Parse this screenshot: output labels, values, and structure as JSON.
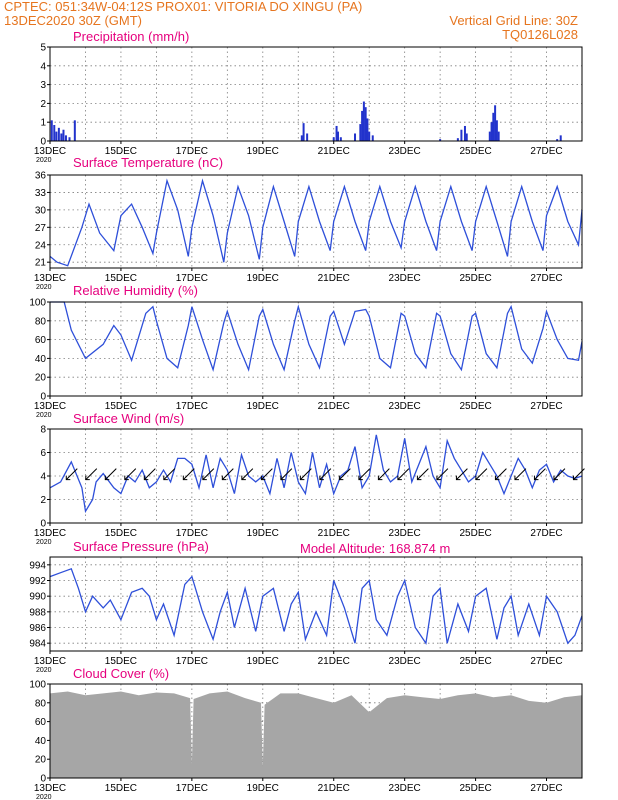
{
  "header": {
    "line1": "CPTEC:  051:34W-04:12S  PROX01: VITORIA DO XINGU (PA)",
    "date": "13DEC2020 30Z (GMT)",
    "grid_note": "Vertical Grid Line: 30Z",
    "code": "TQ0126L028"
  },
  "colors": {
    "header": "#e6751f",
    "title": "#e6007e",
    "line": "#2e4fd9",
    "bar": "#2233cc",
    "cloud": "#a6a6a6"
  },
  "x_labels": [
    "13DEC",
    "15DEC",
    "17DEC",
    "19DEC",
    "21DEC",
    "23DEC",
    "25DEC",
    "27DEC"
  ],
  "year_label": "2020",
  "model_altitude": "Model Altitude: 168.874 m",
  "chart_data": [
    {
      "type": "bar",
      "title": "Precipitation (mm/h)",
      "ylim": [
        0,
        5
      ],
      "yticks": [
        "0",
        "1",
        "2",
        "3",
        "4",
        "5"
      ],
      "x_range_days": [
        0,
        15
      ],
      "bars": [
        [
          0.05,
          1.1
        ],
        [
          0.12,
          0.85
        ],
        [
          0.18,
          0.5
        ],
        [
          0.25,
          0.7
        ],
        [
          0.32,
          0.4
        ],
        [
          0.38,
          0.6
        ],
        [
          0.45,
          0.3
        ],
        [
          0.55,
          0.2
        ],
        [
          0.7,
          1.1
        ],
        [
          7.1,
          0.3
        ],
        [
          7.15,
          0.95
        ],
        [
          7.25,
          0.4
        ],
        [
          8.0,
          0.2
        ],
        [
          8.08,
          0.8
        ],
        [
          8.12,
          0.5
        ],
        [
          8.2,
          0.2
        ],
        [
          8.6,
          0.4
        ],
        [
          8.75,
          0.9
        ],
        [
          8.8,
          1.6
        ],
        [
          8.85,
          2.1
        ],
        [
          8.9,
          1.8
        ],
        [
          8.95,
          1.2
        ],
        [
          9.0,
          0.5
        ],
        [
          9.1,
          0.3
        ],
        [
          11.0,
          0.1
        ],
        [
          11.5,
          0.15
        ],
        [
          11.6,
          0.6
        ],
        [
          11.7,
          0.8
        ],
        [
          11.75,
          0.4
        ],
        [
          12.4,
          0.5
        ],
        [
          12.45,
          1.0
        ],
        [
          12.5,
          1.5
        ],
        [
          12.55,
          1.9
        ],
        [
          12.6,
          1.1
        ],
        [
          12.65,
          0.5
        ],
        [
          14.3,
          0.1
        ],
        [
          14.4,
          0.3
        ]
      ]
    },
    {
      "type": "line",
      "title": "Surface Temperature (nC)",
      "ylim": [
        20,
        36
      ],
      "yticks": [
        21,
        24,
        27,
        30,
        33,
        36
      ],
      "x": [
        0,
        0.2,
        0.5,
        0.9,
        1.1,
        1.4,
        1.8,
        2.0,
        2.3,
        2.6,
        2.9,
        3.0,
        3.3,
        3.6,
        3.9,
        4.0,
        4.3,
        4.6,
        4.9,
        5.0,
        5.3,
        5.6,
        5.9,
        6.0,
        6.3,
        6.6,
        6.9,
        7.0,
        7.3,
        7.6,
        7.9,
        8.0,
        8.3,
        8.6,
        8.9,
        9.0,
        9.3,
        9.6,
        9.9,
        10.0,
        10.3,
        10.6,
        10.9,
        11.0,
        11.3,
        11.6,
        11.9,
        12.0,
        12.3,
        12.6,
        12.9,
        13.0,
        13.3,
        13.6,
        13.9,
        14.0,
        14.3,
        14.6,
        14.9,
        15.0
      ],
      "values": [
        22,
        21,
        20.4,
        27,
        31,
        26,
        23,
        29,
        31,
        27,
        22.5,
        26,
        35,
        30,
        22,
        27,
        35,
        29,
        21,
        26,
        34,
        29,
        21.5,
        27,
        34,
        28,
        22,
        28,
        34,
        28,
        23,
        28,
        34,
        28,
        23,
        28,
        34,
        28,
        23.5,
        28,
        34,
        28,
        23,
        28,
        34,
        28,
        23,
        28,
        34,
        28,
        22,
        28,
        34,
        28,
        23,
        29,
        34,
        28,
        24,
        30
      ]
    },
    {
      "type": "line",
      "title": "Relative Humidity (%)",
      "ylim": [
        0,
        100
      ],
      "yticks": [
        0,
        20,
        40,
        60,
        80,
        100
      ],
      "x": [
        0,
        0.4,
        0.6,
        1.0,
        1.5,
        1.8,
        2.0,
        2.3,
        2.7,
        2.9,
        3.0,
        3.3,
        3.6,
        3.9,
        4.0,
        4.3,
        4.6,
        4.9,
        5.0,
        5.3,
        5.6,
        5.9,
        6.0,
        6.3,
        6.6,
        6.9,
        7.0,
        7.3,
        7.6,
        7.9,
        8.0,
        8.3,
        8.6,
        8.9,
        9.0,
        9.3,
        9.6,
        9.9,
        10.0,
        10.3,
        10.6,
        10.9,
        11.0,
        11.3,
        11.6,
        11.9,
        12.0,
        12.3,
        12.6,
        12.9,
        13.0,
        13.3,
        13.6,
        13.9,
        14.0,
        14.3,
        14.6,
        14.9,
        15.0
      ],
      "values": [
        100,
        100,
        70,
        40,
        55,
        75,
        65,
        38,
        88,
        95,
        80,
        40,
        30,
        75,
        95,
        60,
        28,
        78,
        90,
        55,
        28,
        85,
        92,
        55,
        28,
        80,
        95,
        55,
        30,
        85,
        90,
        55,
        90,
        92,
        85,
        40,
        30,
        88,
        85,
        45,
        30,
        88,
        85,
        45,
        28,
        85,
        88,
        45,
        30,
        88,
        95,
        50,
        35,
        72,
        90,
        60,
        40,
        38,
        58
      ]
    },
    {
      "type": "line",
      "title": "Surface Wind (m/s)",
      "ylim": [
        0,
        8
      ],
      "yticks": [
        0,
        2,
        4,
        6,
        8
      ],
      "x": [
        0,
        0.3,
        0.6,
        0.9,
        1.0,
        1.2,
        1.3,
        1.5,
        1.8,
        2.0,
        2.2,
        2.4,
        2.6,
        2.8,
        3.0,
        3.2,
        3.4,
        3.6,
        3.8,
        4.0,
        4.2,
        4.4,
        4.6,
        4.8,
        5.0,
        5.2,
        5.4,
        5.6,
        5.8,
        6.0,
        6.2,
        6.4,
        6.6,
        6.8,
        7.0,
        7.2,
        7.4,
        7.6,
        7.8,
        8.0,
        8.2,
        8.4,
        8.6,
        8.8,
        9.0,
        9.2,
        9.4,
        9.6,
        9.8,
        10.0,
        10.2,
        10.4,
        10.6,
        10.8,
        11.0,
        11.2,
        11.4,
        11.6,
        11.8,
        12.0,
        12.2,
        12.4,
        12.6,
        12.8,
        13.0,
        13.2,
        13.4,
        13.6,
        13.8,
        14.0,
        14.2,
        14.4,
        14.6,
        14.8,
        15.0
      ],
      "values": [
        3.0,
        3.5,
        5.2,
        3.0,
        1.0,
        2.0,
        3.5,
        4.2,
        3.0,
        2.5,
        4.0,
        3.5,
        4.5,
        3.0,
        3.5,
        4.5,
        3.5,
        5.5,
        5.5,
        5.0,
        3.0,
        5.8,
        3.0,
        5.5,
        4.5,
        2.5,
        5.8,
        4.0,
        3.5,
        4.0,
        2.5,
        5.5,
        3.0,
        6.0,
        3.5,
        2.5,
        6.0,
        3.0,
        5.0,
        2.5,
        4.0,
        4.5,
        6.5,
        3.0,
        4.0,
        7.5,
        4.5,
        3.5,
        4.0,
        7.2,
        3.5,
        5.0,
        6.5,
        4.0,
        3.0,
        7.0,
        5.5,
        4.5,
        3.5,
        4.0,
        6.0,
        5.0,
        4.0,
        2.5,
        4.0,
        5.5,
        4.5,
        3.0,
        4.5,
        5.0,
        3.5,
        4.5,
        4.0,
        3.8,
        4.0
      ]
    },
    {
      "type": "line",
      "title": "Surface Pressure (hPa)",
      "ylim": [
        983,
        995
      ],
      "yticks": [
        984,
        986,
        988,
        990,
        992,
        994
      ],
      "x": [
        0,
        0.3,
        0.6,
        0.8,
        1.0,
        1.2,
        1.5,
        1.7,
        2.0,
        2.3,
        2.6,
        2.8,
        3.0,
        3.2,
        3.5,
        3.8,
        4.0,
        4.3,
        4.6,
        4.8,
        5.0,
        5.2,
        5.5,
        5.8,
        6.0,
        6.3,
        6.6,
        6.8,
        7.0,
        7.2,
        7.5,
        7.8,
        8.0,
        8.3,
        8.6,
        8.8,
        9.0,
        9.2,
        9.5,
        9.8,
        10.0,
        10.3,
        10.6,
        10.8,
        11.0,
        11.2,
        11.5,
        11.8,
        12.0,
        12.3,
        12.6,
        12.8,
        13.0,
        13.2,
        13.5,
        13.8,
        14.0,
        14.3,
        14.6,
        14.8,
        15.0
      ],
      "values": [
        992.5,
        993,
        993.5,
        991,
        988,
        990,
        988.5,
        989.5,
        987,
        990.5,
        991,
        990,
        987,
        989,
        985,
        991.5,
        992.5,
        988,
        984.5,
        988,
        990.5,
        986,
        991,
        985.5,
        990,
        991,
        985.5,
        989,
        990.5,
        984.5,
        988,
        985,
        992,
        988.5,
        984,
        991,
        992,
        987,
        985,
        990,
        992,
        986,
        984,
        990,
        991,
        984,
        989,
        985.5,
        990,
        991,
        984.5,
        988.5,
        990,
        985,
        989,
        985,
        990,
        988,
        984,
        985,
        987.5
      ]
    },
    {
      "type": "area",
      "title": "Cloud Cover (%)",
      "ylim": [
        0,
        100
      ],
      "yticks": [
        0,
        20,
        40,
        60,
        80,
        100
      ],
      "x": [
        0,
        0.5,
        1.0,
        1.5,
        2.0,
        2.5,
        3.0,
        3.5,
        3.95,
        4.0,
        4.05,
        4.5,
        5.0,
        5.5,
        5.95,
        6.0,
        6.05,
        6.5,
        7.0,
        7.5,
        8.0,
        8.5,
        9.0,
        9.5,
        10.0,
        10.5,
        11.0,
        11.5,
        12.0,
        12.5,
        13.0,
        13.5,
        14.0,
        14.5,
        15.0
      ],
      "values": [
        90,
        92,
        88,
        90,
        92,
        88,
        91,
        90,
        85,
        15,
        84,
        90,
        92,
        85,
        80,
        12,
        78,
        90,
        90,
        85,
        80,
        88,
        70,
        85,
        88,
        86,
        84,
        88,
        90,
        86,
        88,
        82,
        80,
        86,
        88
      ]
    }
  ]
}
